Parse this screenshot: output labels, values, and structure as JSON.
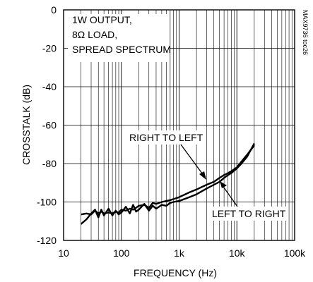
{
  "chart_data": {
    "type": "line",
    "xlabel": "FREQUENCY (Hz)",
    "ylabel": "CROSSTALK (dB)",
    "xscale": "log",
    "xlim": [
      10,
      100000
    ],
    "ylim": [
      -120,
      0
    ],
    "grid": true,
    "x_ticks": [
      10,
      100,
      1000,
      10000,
      100000
    ],
    "x_tick_labels": [
      "10",
      "100",
      "1k",
      "10k",
      "100k"
    ],
    "y_ticks": [
      0,
      -20,
      -40,
      -60,
      -80,
      -100,
      -120
    ],
    "y_tick_labels": [
      "0",
      "-20",
      "-40",
      "-60",
      "-80",
      "-100",
      "-120"
    ],
    "conditions": [
      "1W OUTPUT,",
      "8Ω LOAD,",
      "SPREAD SPECTRUM"
    ],
    "part_code": "MAX9736 toc26",
    "series": [
      {
        "name": "RIGHT TO LEFT",
        "x": [
          20,
          25,
          30,
          35,
          40,
          45,
          50,
          60,
          70,
          80,
          90,
          100,
          120,
          140,
          160,
          180,
          200,
          250,
          300,
          350,
          400,
          500,
          600,
          700,
          800,
          1000,
          1500,
          2000,
          3000,
          4000,
          5000,
          6000,
          7000,
          8000,
          10000,
          12000,
          15000,
          20000
        ],
        "y": [
          -106.5,
          -106,
          -106.5,
          -104.5,
          -106,
          -105,
          -106,
          -105.5,
          -106,
          -105,
          -105.5,
          -104,
          -104.5,
          -103.5,
          -104,
          -103,
          -102,
          -101.5,
          -103,
          -100.5,
          -101,
          -100,
          -99.5,
          -99,
          -98.5,
          -97.5,
          -95,
          -93.5,
          -91,
          -89.5,
          -87.5,
          -86,
          -85,
          -84,
          -82,
          -79,
          -75.5,
          -70.5
        ]
      },
      {
        "name": "LEFT TO RIGHT",
        "x": [
          20,
          25,
          30,
          35,
          40,
          45,
          50,
          60,
          70,
          80,
          90,
          100,
          120,
          140,
          160,
          180,
          200,
          250,
          300,
          350,
          400,
          500,
          600,
          700,
          800,
          1000,
          1500,
          2000,
          3000,
          4000,
          5000,
          6000,
          7000,
          8000,
          10000,
          12000,
          15000,
          20000
        ],
        "y": [
          -111.5,
          -109,
          -106,
          -104,
          -108,
          -104,
          -107,
          -103.5,
          -107,
          -104.5,
          -106.5,
          -105.5,
          -102.5,
          -106,
          -101.5,
          -105,
          -104,
          -101,
          -104.5,
          -102,
          -103.5,
          -101.5,
          -102,
          -100.5,
          -100,
          -99.5,
          -97.5,
          -96,
          -93,
          -91,
          -89.5,
          -87.5,
          -86,
          -85,
          -82.5,
          -80,
          -76.5,
          -69.5
        ]
      }
    ],
    "annotations": [
      {
        "text": "RIGHT TO LEFT",
        "points_to_series": 0
      },
      {
        "text": "LEFT TO RIGHT",
        "points_to_series": 1
      }
    ]
  }
}
